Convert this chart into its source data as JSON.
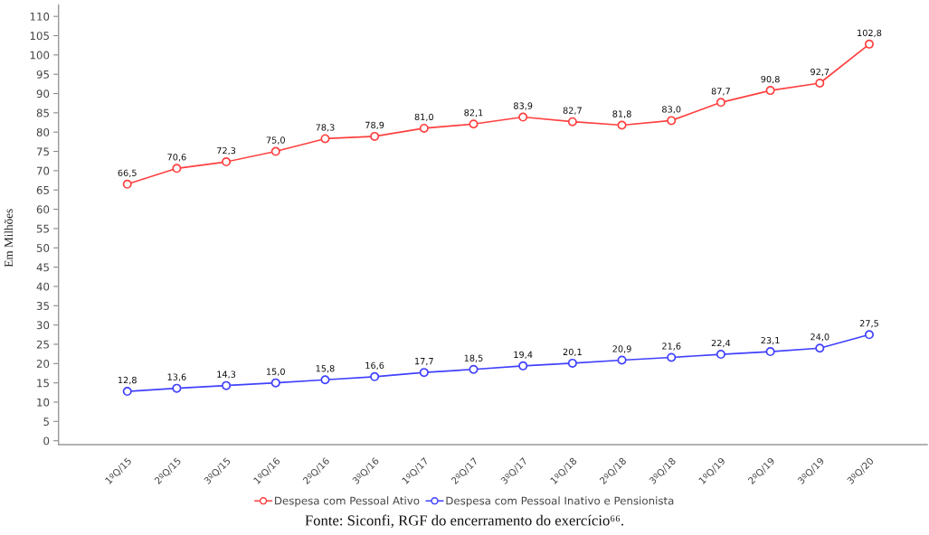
{
  "chart_data": {
    "type": "line",
    "ylabel": "Em Milhões",
    "categories": [
      "1ºQ/15",
      "2ºQ/15",
      "3ºQ/15",
      "1ºQ/16",
      "2ºQ/16",
      "3ºQ/16",
      "1ºQ/17",
      "2ºQ/17",
      "3ºQ/17",
      "1ºQ/18",
      "2ºQ/18",
      "3ºQ/18",
      "1ºQ/19",
      "2ºQ/19",
      "3ºQ/19",
      "3ºQ/20"
    ],
    "series": [
      {
        "name": "Despesa com Pessoal Ativo",
        "color": "#ff4040",
        "values": [
          66.5,
          70.6,
          72.3,
          75.0,
          78.3,
          78.9,
          81.0,
          82.1,
          83.9,
          82.7,
          81.8,
          83.0,
          87.7,
          90.8,
          92.7,
          102.8
        ],
        "value_labels": [
          "66,5",
          "70,6",
          "72,3",
          "75,0",
          "78,3",
          "78,9",
          "81,0",
          "82,1",
          "83,9",
          "82,7",
          "81,8",
          "83,0",
          "87,7",
          "90,8",
          "92,7",
          "102,8"
        ]
      },
      {
        "name": "Despesa com Pessoal Inativo e Pensionista",
        "color": "#4040ff",
        "values": [
          12.8,
          13.6,
          14.3,
          15.0,
          15.8,
          16.6,
          17.7,
          18.5,
          19.4,
          20.1,
          20.9,
          21.6,
          22.4,
          23.1,
          24.0,
          27.5
        ],
        "value_labels": [
          "12,8",
          "13,6",
          "14,3",
          "15,0",
          "15,8",
          "16,6",
          "17,7",
          "18,5",
          "19,4",
          "20,1",
          "20,9",
          "21,6",
          "22,4",
          "23,1",
          "24,0",
          "27,5"
        ]
      }
    ],
    "ylim": [
      -1,
      113
    ],
    "yticks": [
      0,
      5,
      10,
      15,
      20,
      25,
      30,
      35,
      40,
      45,
      50,
      55,
      60,
      65,
      70,
      75,
      80,
      85,
      90,
      95,
      100,
      105,
      110
    ],
    "legend": "bottom",
    "marker": "circle",
    "line_style": "solid",
    "annotations": [
      "Fonte: Siconfi, RGF do encerramento do exercício⁶⁶."
    ]
  }
}
